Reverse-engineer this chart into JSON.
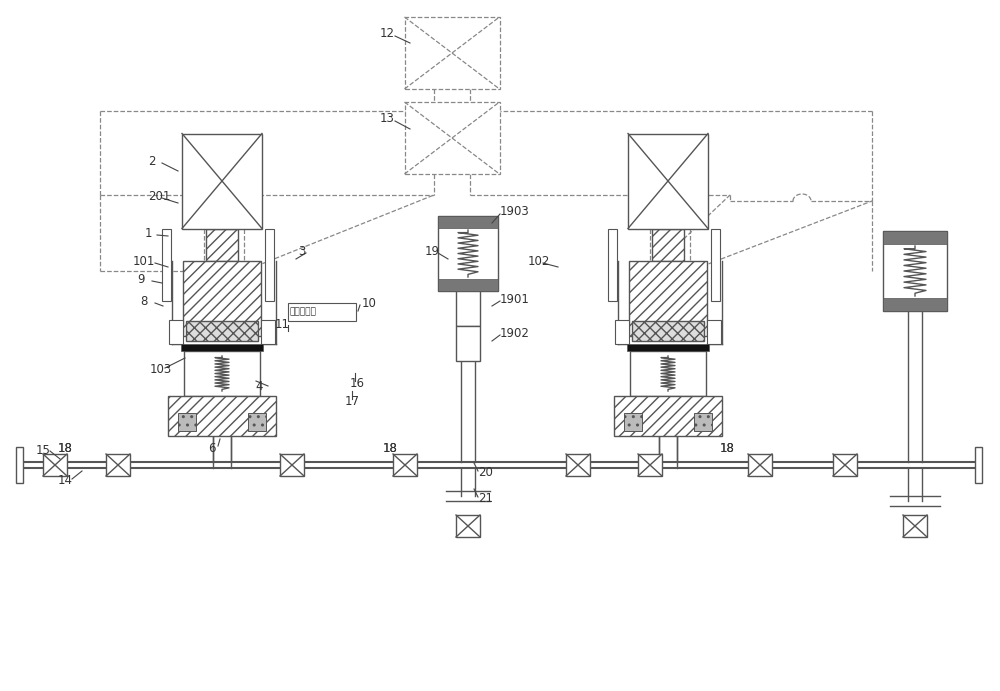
{
  "bg_color": "#ffffff",
  "lc": "#555555",
  "dc": "#888888",
  "figsize": [
    10.0,
    6.91
  ],
  "dpi": 100,
  "lw": 1.0,
  "dlw": 0.9
}
